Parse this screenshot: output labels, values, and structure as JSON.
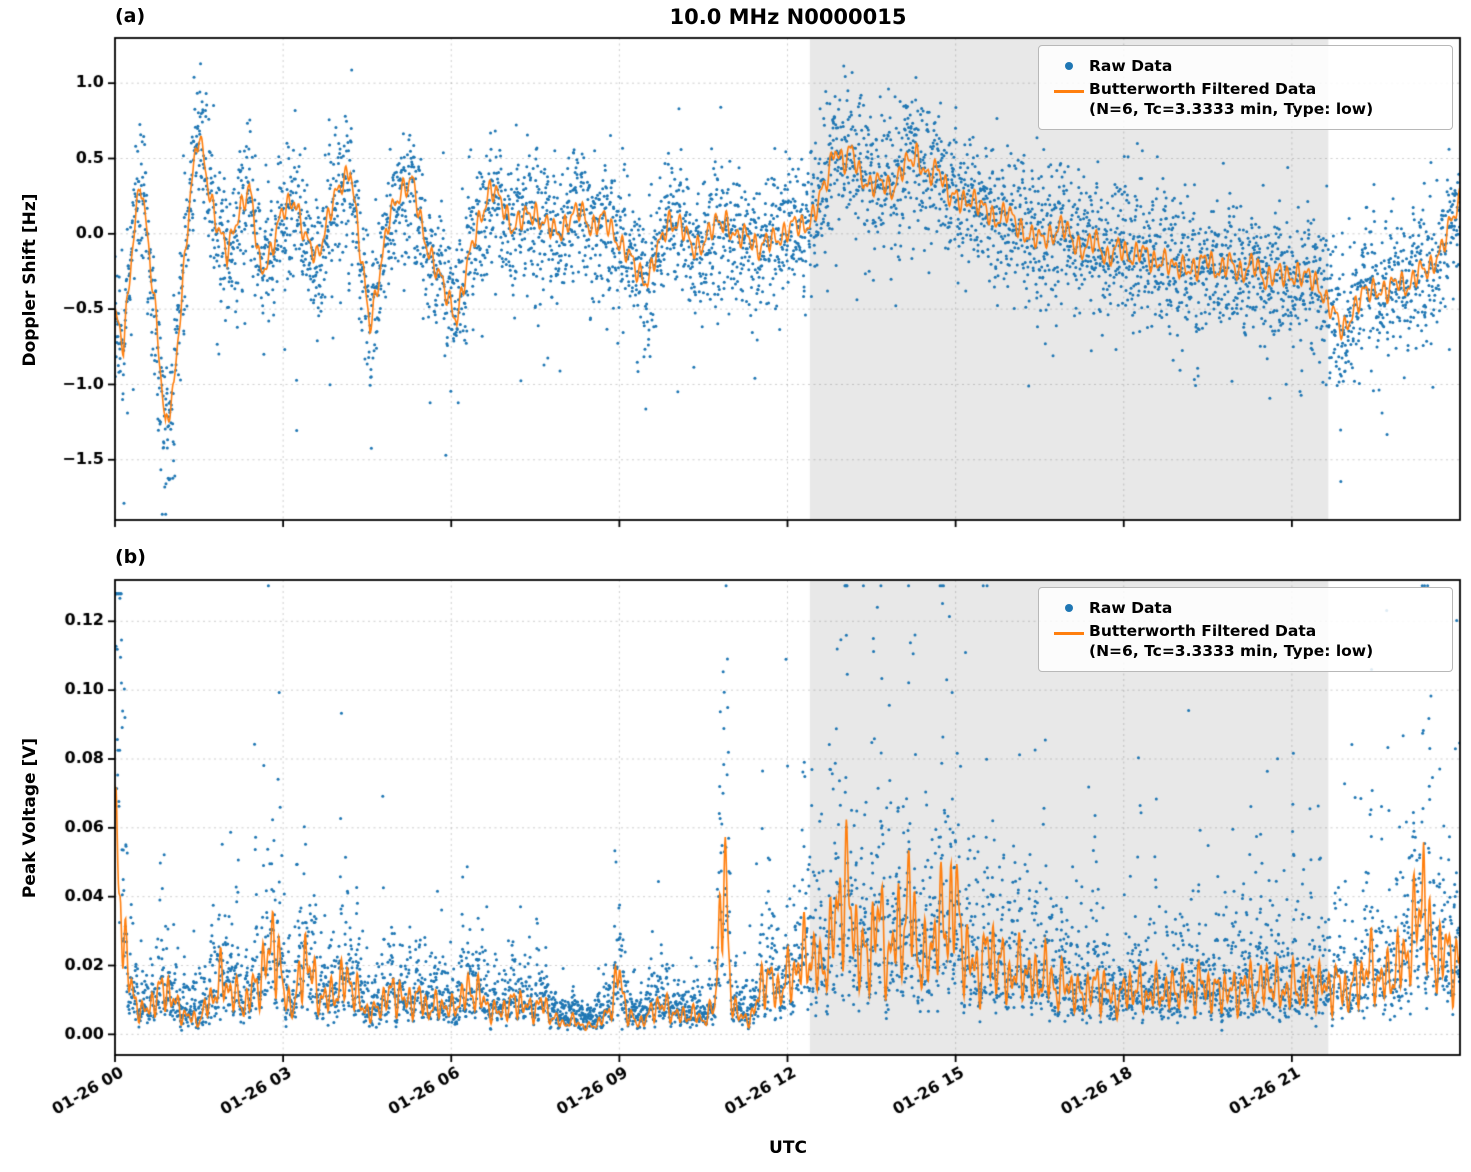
{
  "figure": {
    "title": "10.0 MHz N0000015",
    "xlabel": "UTC",
    "panel_a_label": "(a)",
    "panel_b_label": "(b)",
    "ylabel_a": "Doppler Shift [Hz]",
    "ylabel_b": "Peak Voltage [V]"
  },
  "legend": {
    "raw_label": "Raw Data",
    "filtered_label": "Butterworth Filtered Data",
    "filtered_sublabel": "(N=6, Tc=3.3333 min, Type: low)"
  },
  "colors": {
    "raw": "#1f77b4",
    "filtered": "#ff7f0e",
    "shade": "#e8e8e8",
    "grid": "rgba(120,120,120,0.45)",
    "axis": "#000000"
  },
  "chart_data": [
    {
      "type": "scatter",
      "panel": "a",
      "ylabel": "Doppler Shift [Hz]",
      "xlabel": "UTC",
      "xlim": [
        0,
        24
      ],
      "ylim": [
        -1.9,
        1.3
      ],
      "xticks": [
        0,
        3,
        6,
        9,
        12,
        15,
        18,
        21
      ],
      "xtick_labels": [
        "01-26 00",
        "01-26 03",
        "01-26 06",
        "01-26 09",
        "01-26 12",
        "01-26 15",
        "01-26 18",
        "01-26 21"
      ],
      "yticks": [
        1.0,
        0.5,
        0.0,
        -0.5,
        -1.0,
        -1.5
      ],
      "ytick_labels": [
        "1.0",
        "0.5",
        "0.0",
        "−0.5",
        "−1.0",
        "−1.5"
      ],
      "shaded_xspan": [
        12.4,
        21.65
      ],
      "grid": true,
      "legend_position": "upper right",
      "series": [
        {
          "name": "Raw Data",
          "type": "scatter",
          "color": "#1f77b4",
          "generated_from_filtered_line": true,
          "n_points": 5200,
          "noise_std": 0.21
        },
        {
          "name": "Butterworth Filtered Data (N=6, Tc=3.3333 min, Type: low)",
          "type": "line",
          "color": "#ff7f0e",
          "x": [
            0.0,
            0.15,
            0.3,
            0.45,
            0.6,
            0.75,
            0.9,
            1.05,
            1.2,
            1.35,
            1.5,
            1.65,
            1.8,
            2.0,
            2.2,
            2.4,
            2.6,
            2.8,
            3.0,
            3.2,
            3.4,
            3.6,
            3.8,
            4.0,
            4.2,
            4.4,
            4.55,
            4.7,
            4.9,
            5.1,
            5.3,
            5.5,
            5.7,
            5.9,
            6.1,
            6.3,
            6.5,
            6.7,
            6.9,
            7.1,
            7.3,
            7.5,
            7.7,
            7.9,
            8.1,
            8.3,
            8.5,
            8.7,
            8.9,
            9.1,
            9.3,
            9.5,
            9.7,
            9.9,
            10.1,
            10.3,
            10.5,
            10.7,
            10.9,
            11.1,
            11.3,
            11.5,
            11.7,
            11.9,
            12.1,
            12.3,
            12.5,
            12.7,
            12.85,
            13.0,
            13.15,
            13.3,
            13.5,
            13.7,
            13.9,
            14.1,
            14.3,
            14.5,
            14.7,
            14.9,
            15.1,
            15.3,
            15.5,
            15.7,
            15.9,
            16.1,
            16.3,
            16.5,
            16.7,
            16.9,
            17.1,
            17.3,
            17.5,
            17.7,
            17.9,
            18.1,
            18.3,
            18.5,
            18.7,
            18.9,
            19.1,
            19.3,
            19.5,
            19.7,
            19.9,
            20.1,
            20.3,
            20.5,
            20.7,
            20.9,
            21.1,
            21.3,
            21.5,
            21.7,
            21.9,
            22.1,
            22.3,
            22.5,
            22.7,
            22.9,
            23.1,
            23.3,
            23.5,
            23.7,
            23.85,
            24.0
          ],
          "y": [
            -0.55,
            -0.75,
            -0.1,
            0.35,
            -0.1,
            -0.6,
            -1.3,
            -1.05,
            -0.35,
            0.3,
            0.65,
            0.35,
            0.1,
            -0.15,
            0.15,
            0.3,
            -0.25,
            -0.1,
            0.15,
            0.25,
            -0.05,
            -0.15,
            0.1,
            0.3,
            0.45,
            -0.2,
            -0.6,
            -0.3,
            0.1,
            0.3,
            0.35,
            0.0,
            -0.2,
            -0.4,
            -0.55,
            -0.2,
            0.1,
            0.3,
            0.2,
            0.05,
            0.1,
            0.15,
            0.05,
            0.0,
            0.1,
            0.15,
            0.05,
            0.1,
            0.0,
            -0.1,
            -0.25,
            -0.3,
            -0.1,
            0.1,
            0.05,
            -0.1,
            -0.05,
            0.05,
            0.1,
            -0.05,
            0.0,
            -0.1,
            -0.05,
            0.0,
            0.05,
            0.05,
            0.15,
            0.35,
            0.6,
            0.45,
            0.55,
            0.4,
            0.3,
            0.35,
            0.3,
            0.45,
            0.55,
            0.35,
            0.45,
            0.25,
            0.2,
            0.25,
            0.15,
            0.1,
            0.15,
            0.05,
            0.0,
            -0.05,
            0.0,
            0.05,
            -0.05,
            -0.1,
            -0.05,
            -0.15,
            -0.1,
            -0.15,
            -0.1,
            -0.2,
            -0.15,
            -0.25,
            -0.2,
            -0.25,
            -0.15,
            -0.25,
            -0.2,
            -0.25,
            -0.2,
            -0.3,
            -0.25,
            -0.3,
            -0.25,
            -0.3,
            -0.35,
            -0.5,
            -0.65,
            -0.5,
            -0.4,
            -0.35,
            -0.4,
            -0.3,
            -0.35,
            -0.25,
            -0.2,
            -0.1,
            0.1,
            0.25
          ]
        }
      ]
    },
    {
      "type": "scatter",
      "panel": "b",
      "ylabel": "Peak Voltage [V]",
      "xlabel": "UTC",
      "xlim": [
        0,
        24
      ],
      "ylim": [
        -0.006,
        0.132
      ],
      "xticks": [
        0,
        3,
        6,
        9,
        12,
        15,
        18,
        21
      ],
      "xtick_labels": [
        "01-26 00",
        "01-26 03",
        "01-26 06",
        "01-26 09",
        "01-26 12",
        "01-26 15",
        "01-26 18",
        "01-26 21"
      ],
      "yticks": [
        0.12,
        0.1,
        0.08,
        0.06,
        0.04,
        0.02,
        0.0
      ],
      "ytick_labels": [
        "0.12",
        "0.10",
        "0.08",
        "0.06",
        "0.04",
        "0.02",
        "0.00"
      ],
      "shaded_xspan": [
        12.4,
        21.65
      ],
      "grid": true,
      "legend_position": "upper right",
      "series": [
        {
          "name": "Raw Data",
          "type": "scatter",
          "color": "#1f77b4",
          "generated_from_filtered_line": true,
          "n_points": 5200,
          "noise_lognorm_sigma": 0.55
        },
        {
          "name": "Butterworth Filtered Data (N=6, Tc=3.3333 min, Type: low)",
          "type": "line",
          "color": "#ff7f0e",
          "x": [
            0.0,
            0.1,
            0.2,
            0.35,
            0.5,
            0.7,
            0.9,
            1.1,
            1.3,
            1.5,
            1.7,
            1.9,
            2.1,
            2.3,
            2.5,
            2.7,
            2.85,
            3.0,
            3.2,
            3.4,
            3.6,
            3.8,
            4.0,
            4.2,
            4.4,
            4.6,
            4.8,
            5.0,
            5.2,
            5.4,
            5.6,
            5.8,
            6.0,
            6.2,
            6.4,
            6.6,
            6.8,
            7.0,
            7.2,
            7.4,
            7.6,
            7.8,
            8.0,
            8.2,
            8.4,
            8.6,
            8.8,
            9.0,
            9.1,
            9.3,
            9.5,
            9.7,
            9.9,
            10.1,
            10.3,
            10.5,
            10.7,
            10.85,
            11.0,
            11.2,
            11.4,
            11.6,
            11.8,
            12.0,
            12.2,
            12.4,
            12.6,
            12.8,
            13.0,
            13.2,
            13.4,
            13.6,
            13.8,
            14.0,
            14.2,
            14.4,
            14.6,
            14.8,
            15.0,
            15.2,
            15.4,
            15.6,
            15.8,
            16.0,
            16.2,
            16.4,
            16.6,
            16.8,
            17.0,
            17.2,
            17.4,
            17.6,
            17.8,
            18.0,
            18.2,
            18.4,
            18.6,
            18.8,
            19.0,
            19.2,
            19.4,
            19.6,
            19.8,
            20.0,
            20.2,
            20.4,
            20.6,
            20.8,
            21.0,
            21.2,
            21.4,
            21.6,
            21.8,
            22.0,
            22.2,
            22.4,
            22.6,
            22.8,
            23.0,
            23.2,
            23.35,
            23.5,
            23.7,
            23.9,
            24.0
          ],
          "y": [
            0.05,
            0.045,
            0.02,
            0.01,
            0.006,
            0.01,
            0.014,
            0.008,
            0.005,
            0.004,
            0.01,
            0.016,
            0.012,
            0.008,
            0.014,
            0.02,
            0.03,
            0.012,
            0.008,
            0.024,
            0.012,
            0.01,
            0.014,
            0.016,
            0.008,
            0.006,
            0.01,
            0.013,
            0.009,
            0.011,
            0.007,
            0.009,
            0.007,
            0.011,
            0.013,
            0.009,
            0.006,
            0.008,
            0.01,
            0.007,
            0.009,
            0.005,
            0.003,
            0.004,
            0.002,
            0.003,
            0.006,
            0.018,
            0.008,
            0.003,
            0.005,
            0.009,
            0.007,
            0.005,
            0.006,
            0.004,
            0.008,
            0.05,
            0.01,
            0.004,
            0.006,
            0.018,
            0.012,
            0.016,
            0.02,
            0.024,
            0.018,
            0.028,
            0.045,
            0.03,
            0.02,
            0.035,
            0.022,
            0.03,
            0.038,
            0.018,
            0.028,
            0.033,
            0.038,
            0.022,
            0.018,
            0.025,
            0.02,
            0.016,
            0.02,
            0.015,
            0.018,
            0.013,
            0.015,
            0.011,
            0.013,
            0.015,
            0.01,
            0.012,
            0.014,
            0.011,
            0.013,
            0.012,
            0.014,
            0.012,
            0.015,
            0.012,
            0.013,
            0.012,
            0.015,
            0.013,
            0.016,
            0.012,
            0.014,
            0.013,
            0.016,
            0.013,
            0.015,
            0.012,
            0.016,
            0.02,
            0.015,
            0.018,
            0.022,
            0.03,
            0.045,
            0.02,
            0.025,
            0.02,
            0.022
          ]
        }
      ]
    }
  ]
}
